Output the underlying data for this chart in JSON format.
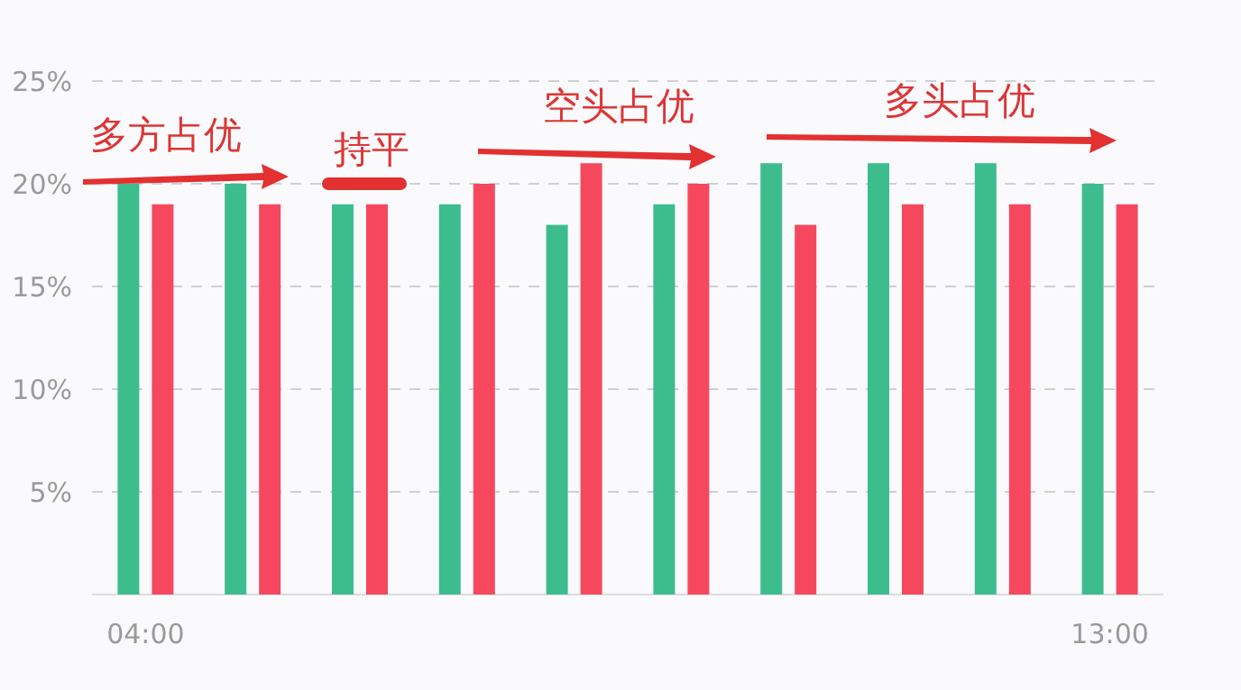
{
  "chart_data": {
    "type": "bar",
    "categories": [
      "04:00",
      null,
      null,
      null,
      null,
      null,
      null,
      null,
      null,
      "13:00"
    ],
    "series": [
      {
        "color": "#3dbd8e",
        "values": [
          20,
          20,
          19,
          19,
          18,
          19,
          21,
          21,
          21,
          20
        ]
      },
      {
        "color": "#f5485f",
        "values": [
          19,
          19,
          19,
          20,
          21,
          20,
          18,
          19,
          19,
          19
        ]
      }
    ],
    "ylim": [
      0,
      25
    ],
    "yticks": [
      {
        "value": 0,
        "label": null
      },
      {
        "value": 5,
        "label": "5%"
      },
      {
        "value": 10,
        "label": "10%"
      },
      {
        "value": 15,
        "label": "15%"
      },
      {
        "value": 20,
        "label": "20%"
      },
      {
        "value": 25,
        "label": "25%"
      }
    ],
    "grid": "y",
    "annotations": [
      "多方占优",
      "持平",
      "空头占优",
      "多头占优"
    ]
  }
}
